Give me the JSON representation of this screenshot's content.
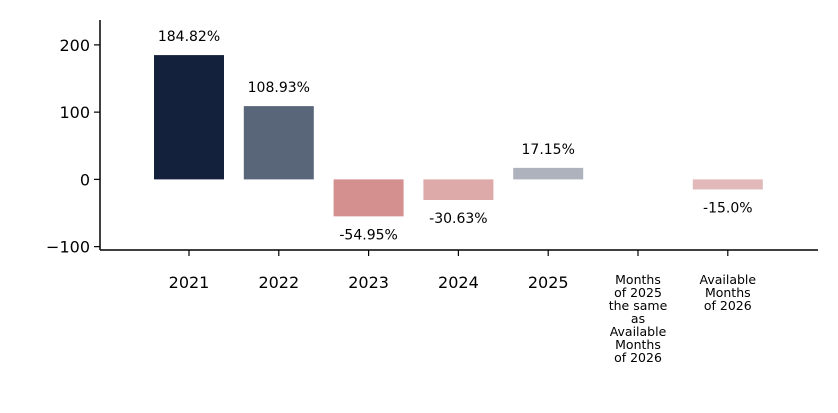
{
  "chart_data": {
    "type": "bar",
    "categories": [
      "2021",
      "2022",
      "2023",
      "2024",
      "2025",
      "Months of 2025 the same as Available Months of 2026",
      "Available Months of 2026"
    ],
    "category_lines": [
      [
        "2021"
      ],
      [
        "2022"
      ],
      [
        "2023"
      ],
      [
        "2024"
      ],
      [
        "2025"
      ],
      [
        "Months",
        "of 2025",
        "the same",
        "as",
        "Available",
        "Months",
        "of 2026"
      ],
      [
        "Available",
        "Months",
        "of 2026"
      ]
    ],
    "values": [
      184.82,
      108.93,
      -54.95,
      -30.63,
      17.15,
      null,
      -15.0
    ],
    "data_labels": [
      "184.82%",
      "108.93%",
      "-54.95%",
      "-30.63%",
      "17.15%",
      "",
      "-15.0%"
    ],
    "bar_colors": [
      "#14213d",
      "#596579",
      "#d48f8f",
      "#dea9a9",
      "#aeb2bd",
      "#ffffff",
      "#e2b9b9"
    ],
    "yticks": [
      -100,
      0,
      100,
      200
    ],
    "ytick_labels": [
      "−100",
      "0",
      "100",
      "200"
    ],
    "ylim": [
      -105,
      237
    ],
    "title": "",
    "xlabel": "",
    "ylabel": "",
    "grid": false,
    "legend": "none"
  }
}
